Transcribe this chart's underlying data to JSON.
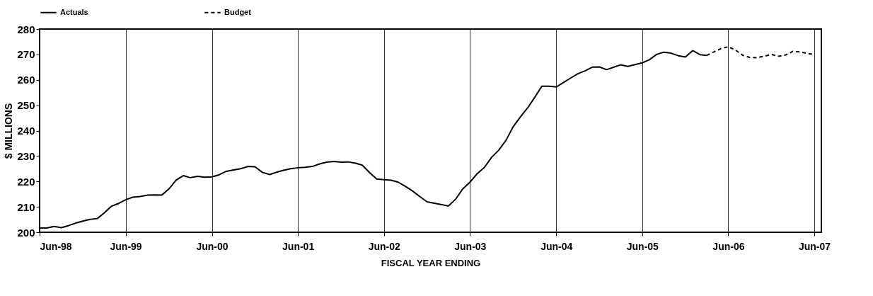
{
  "chart_data": {
    "type": "line",
    "xlabel": "FISCAL YEAR ENDING",
    "ylabel": "$ MILLIONS",
    "series": [
      {
        "name": "Actuals",
        "color": "#000000",
        "line_style": "solid",
        "x": [
          "1998-06",
          "1998-07",
          "1998-08",
          "1998-09",
          "1998-10",
          "1998-11",
          "1998-12",
          "1999-01",
          "1999-02",
          "1999-03",
          "1999-04",
          "1999-05",
          "1999-06",
          "1999-07",
          "1999-08",
          "1999-09",
          "1999-10",
          "1999-11",
          "1999-12",
          "2000-01",
          "2000-02",
          "2000-03",
          "2000-04",
          "2000-05",
          "2000-06",
          "2000-07",
          "2000-08",
          "2000-09",
          "2000-10",
          "2000-11",
          "2000-12",
          "2001-01",
          "2001-02",
          "2001-03",
          "2001-04",
          "2001-05",
          "2001-06",
          "2001-07",
          "2001-08",
          "2001-09",
          "2001-10",
          "2001-11",
          "2001-12",
          "2002-01",
          "2002-02",
          "2002-03",
          "2002-04",
          "2002-05",
          "2002-06",
          "2002-07",
          "2002-08",
          "2002-09",
          "2002-10",
          "2002-11",
          "2002-12",
          "2003-01",
          "2003-02",
          "2003-03",
          "2003-04",
          "2003-05",
          "2003-06",
          "2003-07",
          "2003-08",
          "2003-09",
          "2003-10",
          "2003-11",
          "2003-12",
          "2004-01",
          "2004-02",
          "2004-03",
          "2004-04",
          "2004-05",
          "2004-06",
          "2004-07",
          "2004-08",
          "2004-09",
          "2004-10",
          "2004-11",
          "2004-12",
          "2005-01",
          "2005-02",
          "2005-03",
          "2005-04",
          "2005-05",
          "2005-06",
          "2005-07",
          "2005-08",
          "2005-09",
          "2005-10",
          "2005-11",
          "2005-12",
          "2006-01",
          "2006-02",
          "2006-03"
        ],
        "values": [
          201.7,
          201.7,
          202.3,
          201.8,
          202.6,
          203.6,
          204.4,
          205.1,
          205.4,
          207.5,
          210.2,
          211.3,
          212.8,
          213.8,
          214.1,
          214.6,
          214.7,
          214.6,
          217.0,
          220.5,
          222.3,
          221.5,
          222.0,
          221.7,
          221.8,
          222.6,
          224.0,
          224.5,
          225.0,
          225.9,
          225.8,
          223.6,
          222.7,
          223.6,
          224.4,
          225.0,
          225.4,
          225.6,
          225.9,
          226.9,
          227.6,
          227.9,
          227.6,
          227.7,
          227.2,
          226.4,
          223.5,
          221.0,
          220.7,
          220.5,
          219.7,
          218.0,
          216.2,
          214.0,
          212.0,
          211.4,
          210.9,
          210.3,
          213.0,
          217.0,
          219.7,
          223.0,
          225.5,
          229.5,
          232.3,
          236.2,
          241.5,
          245.4,
          249.0,
          253.0,
          257.5,
          257.5,
          257.2,
          258.9,
          260.7,
          262.4,
          263.5,
          265.0,
          265.1,
          264.0,
          265.0,
          265.9,
          265.3,
          266.0,
          266.7,
          267.9,
          270.0,
          270.9,
          270.5,
          269.5,
          269.0,
          271.5,
          269.9,
          269.6
        ]
      },
      {
        "name": "Budget",
        "color": "#000000",
        "line_style": "dashed",
        "x": [
          "2006-03",
          "2006-04",
          "2006-05",
          "2006-06",
          "2006-07",
          "2006-08",
          "2006-09",
          "2006-10",
          "2006-11",
          "2006-12",
          "2007-01",
          "2007-02",
          "2007-03",
          "2007-04",
          "2007-05",
          "2007-06"
        ],
        "values": [
          269.6,
          271.0,
          272.3,
          273.0,
          271.8,
          269.7,
          268.8,
          268.7,
          269.3,
          270.0,
          269.3,
          269.8,
          271.2,
          271.0,
          270.4,
          270.0
        ]
      }
    ],
    "xlim": [
      "1998-06",
      "2007-07"
    ],
    "xticks": [
      {
        "value": "1998-06",
        "label": "Jun-98"
      },
      {
        "value": "1999-06",
        "label": "Jun-99"
      },
      {
        "value": "2000-06",
        "label": "Jun-00"
      },
      {
        "value": "2001-06",
        "label": "Jun-01"
      },
      {
        "value": "2002-06",
        "label": "Jun-02"
      },
      {
        "value": "2003-06",
        "label": "Jun-03"
      },
      {
        "value": "2004-06",
        "label": "Jun-04"
      },
      {
        "value": "2005-06",
        "label": "Jun-05"
      },
      {
        "value": "2006-06",
        "label": "Jun-06"
      },
      {
        "value": "2007-06",
        "label": "Jun-07"
      }
    ],
    "ylim": [
      200,
      280
    ],
    "yticks": [
      200,
      210,
      220,
      230,
      240,
      250,
      260,
      270,
      280
    ],
    "grid": "x",
    "legend": "top",
    "marker": "none"
  }
}
